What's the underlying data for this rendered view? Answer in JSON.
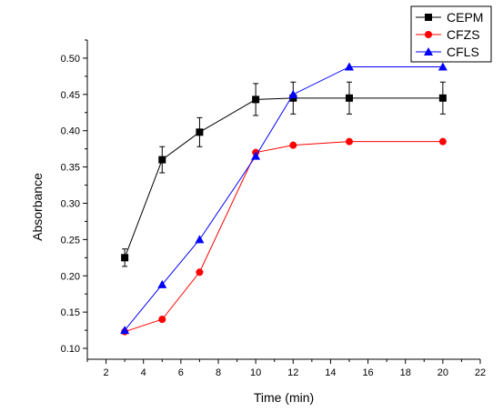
{
  "chart_data": {
    "type": "line",
    "xlabel": "Time (min)",
    "ylabel": "Absorbance",
    "xlim": [
      1,
      22
    ],
    "ylim": [
      0.085,
      0.525
    ],
    "x_ticks": [
      2,
      4,
      6,
      8,
      10,
      12,
      14,
      16,
      18,
      20,
      22
    ],
    "y_ticks": [
      0.1,
      0.15,
      0.2,
      0.25,
      0.3,
      0.35,
      0.4,
      0.45,
      0.5
    ],
    "grid": false,
    "legend_position": "top-right",
    "series": [
      {
        "name": "CEPM",
        "marker": "square",
        "color": "#000000",
        "x": [
          3,
          5,
          7,
          10,
          12,
          15,
          20
        ],
        "y": [
          0.225,
          0.36,
          0.398,
          0.443,
          0.445,
          0.445,
          0.445
        ],
        "error": [
          0.012,
          0.018,
          0.02,
          0.022,
          0.022,
          0.022,
          0.022
        ]
      },
      {
        "name": "CFZS",
        "marker": "circle",
        "color": "#ff0000",
        "x": [
          3,
          5,
          7,
          10,
          12,
          15,
          20
        ],
        "y": [
          0.123,
          0.14,
          0.205,
          0.37,
          0.38,
          0.385,
          0.385
        ]
      },
      {
        "name": "CFLS",
        "marker": "triangle",
        "color": "#0000ff",
        "x": [
          3,
          5,
          7,
          10,
          12,
          15,
          20
        ],
        "y": [
          0.125,
          0.188,
          0.25,
          0.365,
          0.45,
          0.488,
          0.488
        ]
      }
    ]
  }
}
